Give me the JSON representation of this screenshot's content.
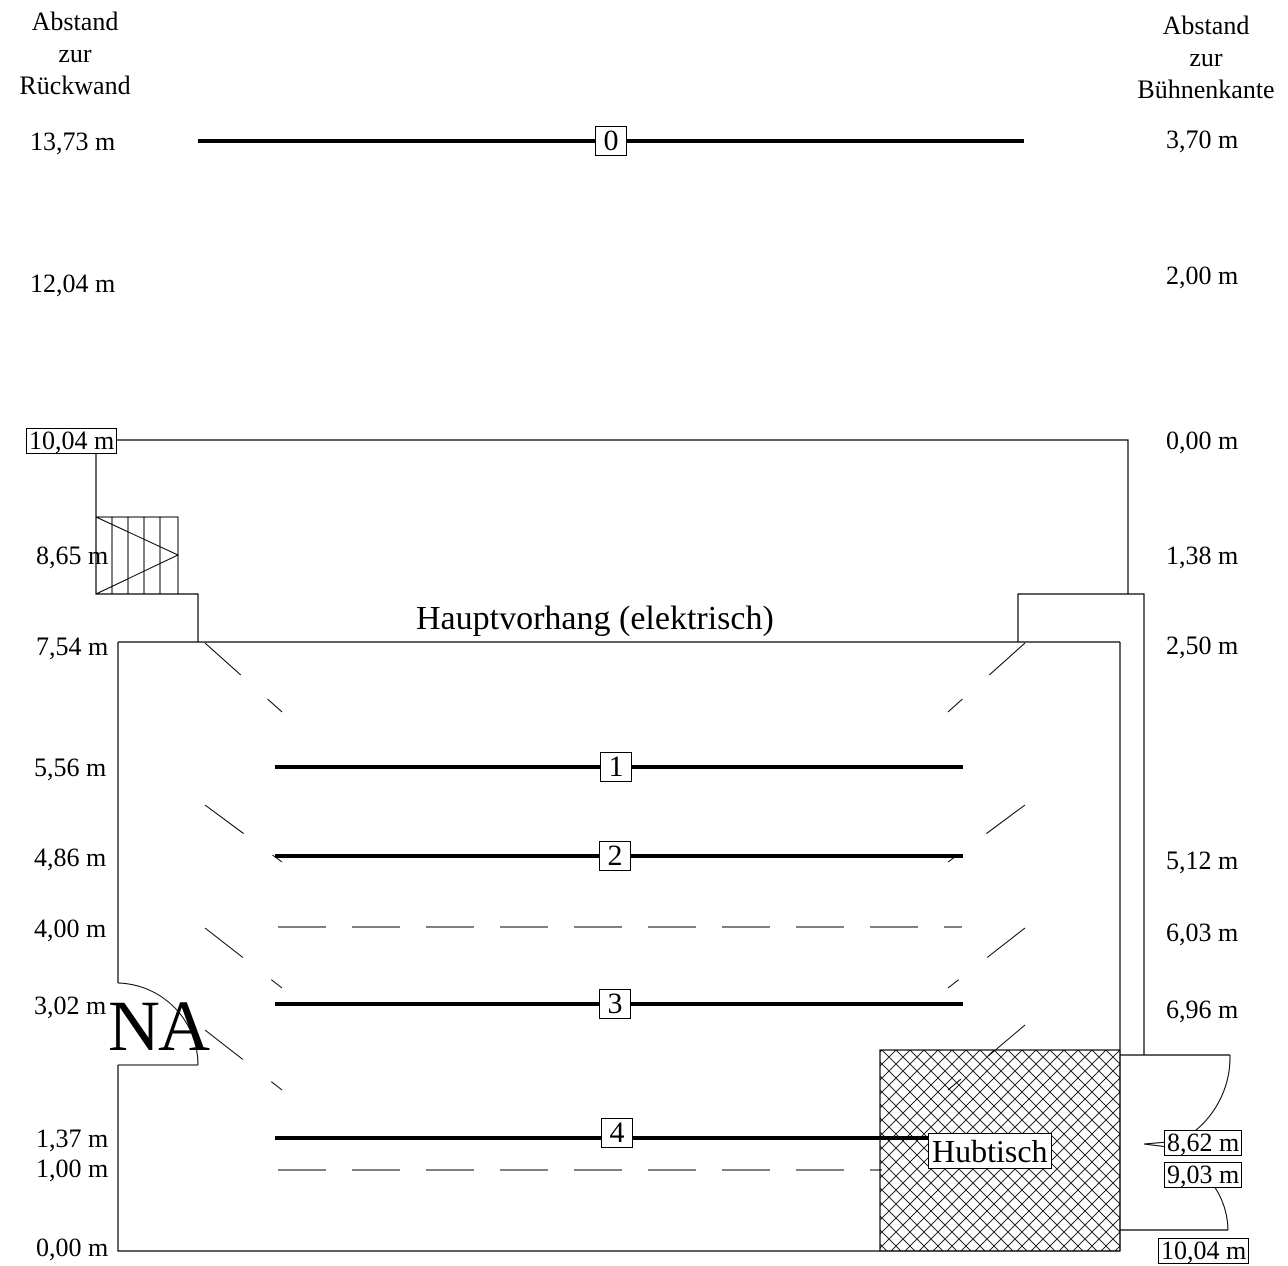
{
  "headers": {
    "left": [
      "Abstand",
      "zur",
      "Rückwand"
    ],
    "right": [
      "Abstand",
      "zur",
      "Bühnenkante"
    ]
  },
  "left_labels": [
    "13,73 m",
    "12,04 m",
    "10,04 m",
    "8,65 m",
    "7,54 m",
    "5,56 m",
    "4,86 m",
    "4,00 m",
    "3,02 m",
    "1,37 m",
    "1,00 m",
    "0,00 m"
  ],
  "right_labels": [
    "3,70 m",
    "2,00 m",
    "0,00 m",
    "1,38 m",
    "2,50 m",
    "5,12 m",
    "6,03 m",
    "6,96 m",
    "8,62 m",
    "9,03 m",
    "10,04 m"
  ],
  "bar_numbers": [
    "0",
    "1",
    "2",
    "3",
    "4"
  ],
  "curtain_label": "Hauptvorhang (elektrisch)",
  "exit_label": "NA",
  "lift_label": "Hubtisch"
}
